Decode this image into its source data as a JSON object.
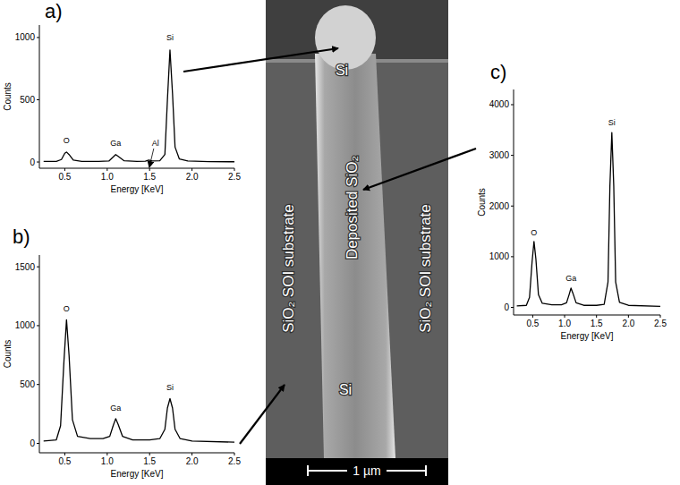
{
  "chart_data": [
    {
      "type": "line",
      "title": "a)",
      "x_label": "Energy [KeV]",
      "y_label": "Counts",
      "color": "#000000",
      "x": [
        0.25,
        0.4,
        0.46,
        0.5,
        0.52,
        0.55,
        0.6,
        0.7,
        0.9,
        1.02,
        1.07,
        1.1,
        1.13,
        1.2,
        1.35,
        1.45,
        1.49,
        1.53,
        1.62,
        1.68,
        1.71,
        1.74,
        1.77,
        1.8,
        1.85,
        1.95,
        2.2,
        2.5
      ],
      "values": [
        5,
        5,
        20,
        70,
        80,
        60,
        15,
        5,
        5,
        8,
        40,
        60,
        45,
        10,
        5,
        6,
        15,
        8,
        10,
        60,
        500,
        900,
        550,
        120,
        25,
        8,
        3,
        2
      ],
      "xlim": [
        0.2,
        2.5
      ],
      "xticks": [
        0.5,
        {
          "value": 1,
          "label": "1.0"
        },
        1.5,
        {
          "value": 2,
          "label": "2.0"
        },
        2.5
      ],
      "ylim": [
        -50,
        1100
      ],
      "yticks": [
        0,
        500,
        1000
      ],
      "annotations": [
        {
          "text": "O",
          "x": 0.52,
          "y": 150
        },
        {
          "text": "Ga",
          "x": 1.1,
          "y": 130
        },
        {
          "text": "Al",
          "x": 1.57,
          "y": 130,
          "marker": "arrow"
        },
        {
          "text": "Si",
          "x": 1.74,
          "y": 980
        }
      ]
    },
    {
      "type": "line",
      "title": "b)",
      "x_label": "Energy [KeV]",
      "y_label": "Counts",
      "color": "#000000",
      "x": [
        0.25,
        0.4,
        0.45,
        0.49,
        0.52,
        0.55,
        0.59,
        0.65,
        0.8,
        0.95,
        1.03,
        1.07,
        1.1,
        1.13,
        1.18,
        1.3,
        1.5,
        1.62,
        1.68,
        1.71,
        1.74,
        1.77,
        1.8,
        1.86,
        2.0,
        2.5
      ],
      "values": [
        20,
        30,
        150,
        700,
        1050,
        750,
        200,
        60,
        40,
        40,
        60,
        150,
        210,
        160,
        60,
        30,
        30,
        40,
        120,
        300,
        380,
        300,
        120,
        40,
        20,
        10
      ],
      "xlim": [
        0.2,
        2.5
      ],
      "xticks": [
        0.5,
        {
          "value": 1,
          "label": "1.0"
        },
        1.5,
        {
          "value": 2,
          "label": "2.0"
        },
        2.5
      ],
      "ylim": [
        -80,
        1600
      ],
      "yticks": [
        0,
        500,
        1000,
        1500
      ],
      "annotations": [
        {
          "text": "O",
          "x": 0.52,
          "y": 1120
        },
        {
          "text": "Ga",
          "x": 1.1,
          "y": 280
        },
        {
          "text": "Si",
          "x": 1.74,
          "y": 450
        }
      ]
    },
    {
      "type": "line",
      "title": "c)",
      "x_label": "Energy [KeV]",
      "y_label": "Counts",
      "color": "#000000",
      "x": [
        0.25,
        0.4,
        0.45,
        0.49,
        0.52,
        0.55,
        0.59,
        0.65,
        0.8,
        0.95,
        1.03,
        1.07,
        1.1,
        1.13,
        1.18,
        1.3,
        1.5,
        1.62,
        1.68,
        1.71,
        1.74,
        1.77,
        1.8,
        1.86,
        2.0,
        2.5
      ],
      "values": [
        30,
        40,
        200,
        900,
        1300,
        950,
        250,
        80,
        50,
        50,
        90,
        250,
        380,
        280,
        90,
        40,
        40,
        60,
        500,
        2400,
        3450,
        2400,
        500,
        100,
        40,
        20
      ],
      "xlim": [
        0.2,
        2.5
      ],
      "xticks": [
        0.5,
        {
          "value": 1,
          "label": "1.0"
        },
        1.5,
        {
          "value": 2,
          "label": "2.0"
        },
        2.5
      ],
      "ylim": [
        -150,
        4300
      ],
      "yticks": [
        0,
        1000,
        2000,
        3000,
        4000
      ],
      "annotations": [
        {
          "text": "O",
          "x": 0.52,
          "y": 1420
        },
        {
          "text": "Ga",
          "x": 1.1,
          "y": 520
        },
        {
          "text": "Si",
          "x": 1.74,
          "y": 3600
        }
      ]
    }
  ],
  "image": {
    "labels": [
      "Si",
      "Deposited SiO₂",
      "SiO₂ SOI substrate",
      "SiO₂ SOI substrate",
      "Si"
    ],
    "scale_bar": "1 µm"
  }
}
